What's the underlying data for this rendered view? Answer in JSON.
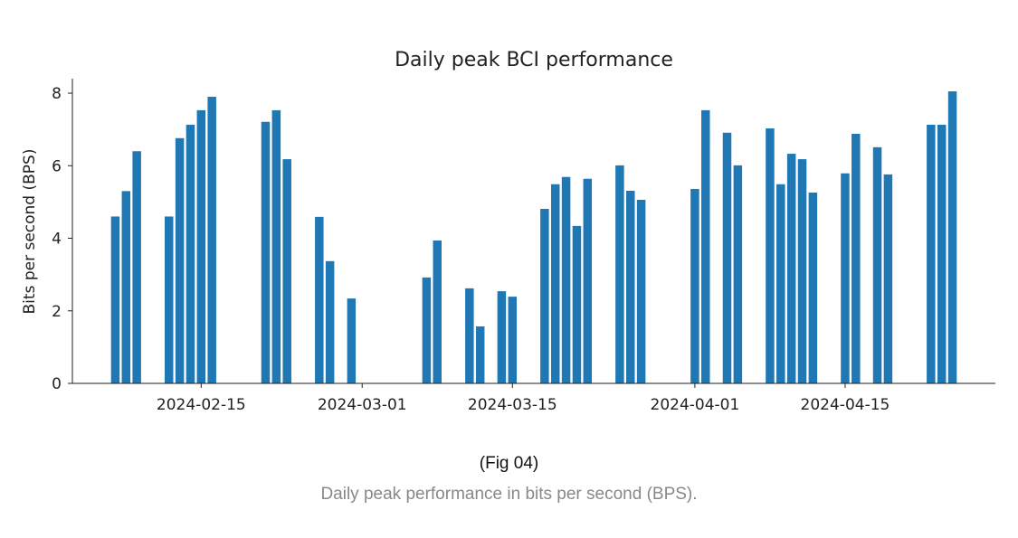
{
  "chart_data": {
    "type": "bar",
    "title": "Daily peak BCI performance",
    "xlabel": "",
    "ylabel": "Bits per second (BPS)",
    "xlim": [
      "2024-02-03",
      "2024-04-29"
    ],
    "ylim": [
      0,
      8.4
    ],
    "yticks": [
      0,
      2,
      4,
      6,
      8
    ],
    "xticks": [
      "2024-02-15",
      "2024-03-01",
      "2024-03-15",
      "2024-04-01",
      "2024-04-15"
    ],
    "grid": false,
    "color": "#1f77b4",
    "x": [
      "2024-02-07",
      "2024-02-08",
      "2024-02-09",
      "2024-02-12",
      "2024-02-13",
      "2024-02-14",
      "2024-02-15",
      "2024-02-16",
      "2024-02-21",
      "2024-02-22",
      "2024-02-23",
      "2024-02-26",
      "2024-02-27",
      "2024-02-29",
      "2024-03-07",
      "2024-03-08",
      "2024-03-11",
      "2024-03-12",
      "2024-03-14",
      "2024-03-15",
      "2024-03-18",
      "2024-03-19",
      "2024-03-20",
      "2024-03-21",
      "2024-03-22",
      "2024-03-25",
      "2024-03-26",
      "2024-03-27",
      "2024-04-01",
      "2024-04-02",
      "2024-04-04",
      "2024-04-05",
      "2024-04-08",
      "2024-04-09",
      "2024-04-10",
      "2024-04-11",
      "2024-04-12",
      "2024-04-15",
      "2024-04-16",
      "2024-04-18",
      "2024-04-19",
      "2024-04-23",
      "2024-04-24",
      "2024-04-25"
    ],
    "values": [
      4.6,
      5.3,
      6.4,
      4.6,
      6.76,
      7.13,
      7.53,
      7.9,
      7.21,
      7.53,
      6.18,
      4.59,
      3.37,
      2.34,
      2.92,
      3.94,
      2.62,
      1.57,
      2.54,
      2.39,
      4.81,
      5.49,
      5.69,
      4.34,
      5.64,
      6.01,
      5.31,
      5.06,
      5.36,
      7.53,
      6.91,
      6.01,
      7.03,
      5.49,
      6.33,
      6.18,
      5.26,
      5.79,
      6.88,
      6.51,
      5.76,
      7.13,
      7.13,
      8.05
    ]
  },
  "caption": {
    "label": "(Fig 04)",
    "text": "Daily peak performance in bits per second (BPS)."
  }
}
